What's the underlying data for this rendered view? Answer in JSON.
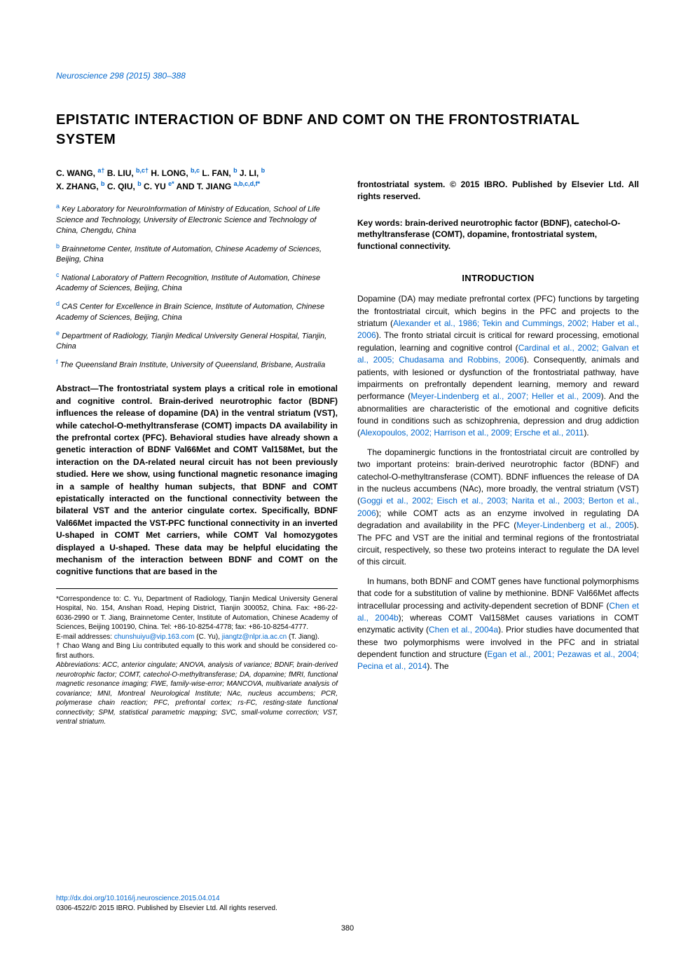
{
  "journal_ref": "Neuroscience 298 (2015) 380–388",
  "title": "EPISTATIC INTERACTION OF BDNF AND COMT ON THE FRONTOSTRIATAL SYSTEM",
  "authors_html": "C. WANG, <sup>a†</sup> B. LIU, <sup>b,c†</sup> H. LONG, <sup>b,c</sup> L. FAN, <sup>b</sup> J. LI, <sup>b</sup> X. ZHANG, <sup>b</sup> C. QIU, <sup>b</sup> C. YU <sup>e*</sup> AND T. JIANG <sup>a,b,c,d,f*</sup>",
  "affiliations": [
    {
      "sup": "a",
      "text": "Key Laboratory for NeuroInformation of Ministry of Education, School of Life Science and Technology, University of Electronic Science and Technology of China, Chengdu, China"
    },
    {
      "sup": "b",
      "text": "Brainnetome Center, Institute of Automation, Chinese Academy of Sciences, Beijing, China"
    },
    {
      "sup": "c",
      "text": "National Laboratory of Pattern Recognition, Institute of Automation, Chinese Academy of Sciences, Beijing, China"
    },
    {
      "sup": "d",
      "text": "CAS Center for Excellence in Brain Science, Institute of Automation, Chinese Academy of Sciences, Beijing, China"
    },
    {
      "sup": "e",
      "text": "Department of Radiology, Tianjin Medical University General Hospital, Tianjin, China"
    },
    {
      "sup": "f",
      "text": "The Queensland Brain Institute, University of Queensland, Brisbane, Australia"
    }
  ],
  "abstract": "Abstract—The frontostriatal system plays a critical role in emotional and cognitive control. Brain-derived neurotrophic factor (BDNF) influences the release of dopamine (DA) in the ventral striatum (VST), while catechol-O-methyltransferase (COMT) impacts DA availability in the prefrontal cortex (PFC). Behavioral studies have already shown a genetic interaction of BDNF Val66Met and COMT Val158Met, but the interaction on the DA-related neural circuit has not been previously studied. Here we show, using functional magnetic resonance imaging in a sample of healthy human subjects, that BDNF and COMT epistatically interacted on the functional connectivity between the bilateral VST and the anterior cingulate cortex. Specifically, BDNF Val66Met impacted the VST-PFC functional connectivity in an inverted U-shaped in COMT Met carriers, while COMT Val homozygotes displayed a U-shaped. These data may be helpful elucidating the mechanism of the interaction between BDNF and COMT on the cognitive functions that are based in the",
  "abstract_cont": "frontostriatal system. © 2015 IBRO. Published by Elsevier Ltd. All rights reserved.",
  "footnote": {
    "corr": "*Correspondence to: C. Yu, Department of Radiology, Tianjin Medical University General Hospital, No. 154, Anshan Road, Heping District, Tianjin 300052, China. Fax: +86-22-6036-2990 or T. Jiang, Brainnetome Center, Institute of Automation, Chinese Academy of Sciences, Beijing 100190, China. Tel: +86-10-8254-4778; fax: +86-10-8254-4777.",
    "email_label": "E-mail addresses: ",
    "email1": "chunshuiyu@vip.163.com",
    "email1_who": " (C. Yu), ",
    "email2": "jiangtz@nlpr.ia.ac.cn",
    "email2_who": " (T. Jiang).",
    "dagger": "† Chao Wang and Bing Liu contributed equally to this work and should be considered co-first authors.",
    "abbrev": "Abbreviations: ACC, anterior cingulate; ANOVA, analysis of variance; BDNF, brain-derived neurotrophic factor; COMT, catechol-O-methyltransferase; DA, dopamine; fMRI, functional magnetic resonance imaging; FWE, family-wise-error; MANCOVA, multivariate analysis of covariance; MNI, Montreal Neurological Institute; NAc, nucleus accumbens; PCR, polymerase chain reaction; PFC, prefrontal cortex; rs-FC, resting-state functional connectivity; SPM, statistical parametric mapping; SVC, small-volume correction; VST, ventral striatum."
  },
  "keywords": "Key words: brain-derived neurotrophic factor (BDNF), catechol-O-methyltransferase (COMT), dopamine, frontostriatal system, functional connectivity.",
  "intro_heading": "INTRODUCTION",
  "intro": {
    "p1_a": "Dopamine (DA) may mediate prefrontal cortex (PFC) functions by targeting the frontostriatal circuit, which begins in the PFC and projects to the striatum (",
    "p1_cite1": "Alexander et al., 1986; Tekin and Cummings, 2002; Haber et al., 2006",
    "p1_b": "). The fronto striatal circuit is critical for reward processing, emotional regulation, learning and cognitive control (",
    "p1_cite2": "Cardinal et al., 2002; Galvan et al., 2005; Chudasama and Robbins, 2006",
    "p1_c": "). Consequently, animals and patients, with lesioned or dysfunction of the frontostriatal pathway, have impairments on prefrontally dependent learning, memory and reward performance (",
    "p1_cite3": "Meyer-Lindenberg et al., 2007; Heller et al., 2009",
    "p1_d": "). And the abnormalities are characteristic of the emotional and cognitive deficits found in conditions such as schizophrenia, depression and drug addiction (",
    "p1_cite4": "Alexopoulos, 2002; Harrison et al., 2009; Ersche et al., 2011",
    "p1_e": ").",
    "p2_a": "The dopaminergic functions in the frontostriatal circuit are controlled by two important proteins: brain-derived neurotrophic factor (BDNF) and catechol-O-methyltransferase (COMT). BDNF influences the release of DA in the nucleus accumbens (NAc), more broadly, the ventral striatum (VST) (",
    "p2_cite1": "Goggi et al., 2002; Eisch et al., 2003; Narita et al., 2003; Berton et al., 2006",
    "p2_b": "); while COMT acts as an enzyme involved in regulating DA degradation and availability in the PFC (",
    "p2_cite2": "Meyer-Lindenberg et al., 2005",
    "p2_c": "). The PFC and VST are the initial and terminal regions of the frontostriatal circuit, respectively, so these two proteins interact to regulate the DA level of this circuit.",
    "p3_a": "In humans, both BDNF and COMT genes have functional polymorphisms that code for a substitution of valine by methionine. BDNF Val66Met affects intracellular processing and activity-dependent secretion of BDNF (",
    "p3_cite1": "Chen et al., 2004b",
    "p3_b": "); whereas COMT Val158Met causes variations in COMT enzymatic activity (",
    "p3_cite2": "Chen et al., 2004a",
    "p3_c": "). Prior studies have documented that these two polymorphisms were involved in the PFC and in striatal dependent function and structure (",
    "p3_cite3": "Egan et al., 2001; Pezawas et al., 2004; Pecina et al., 2014",
    "p3_d": "). The"
  },
  "doi": "http://dx.doi.org/10.1016/j.neuroscience.2015.04.014",
  "copyright": "0306-4522/© 2015 IBRO. Published by Elsevier Ltd. All rights reserved.",
  "page_num": "380",
  "colors": {
    "link": "#0066cc",
    "text": "#000000",
    "bg": "#ffffff"
  }
}
